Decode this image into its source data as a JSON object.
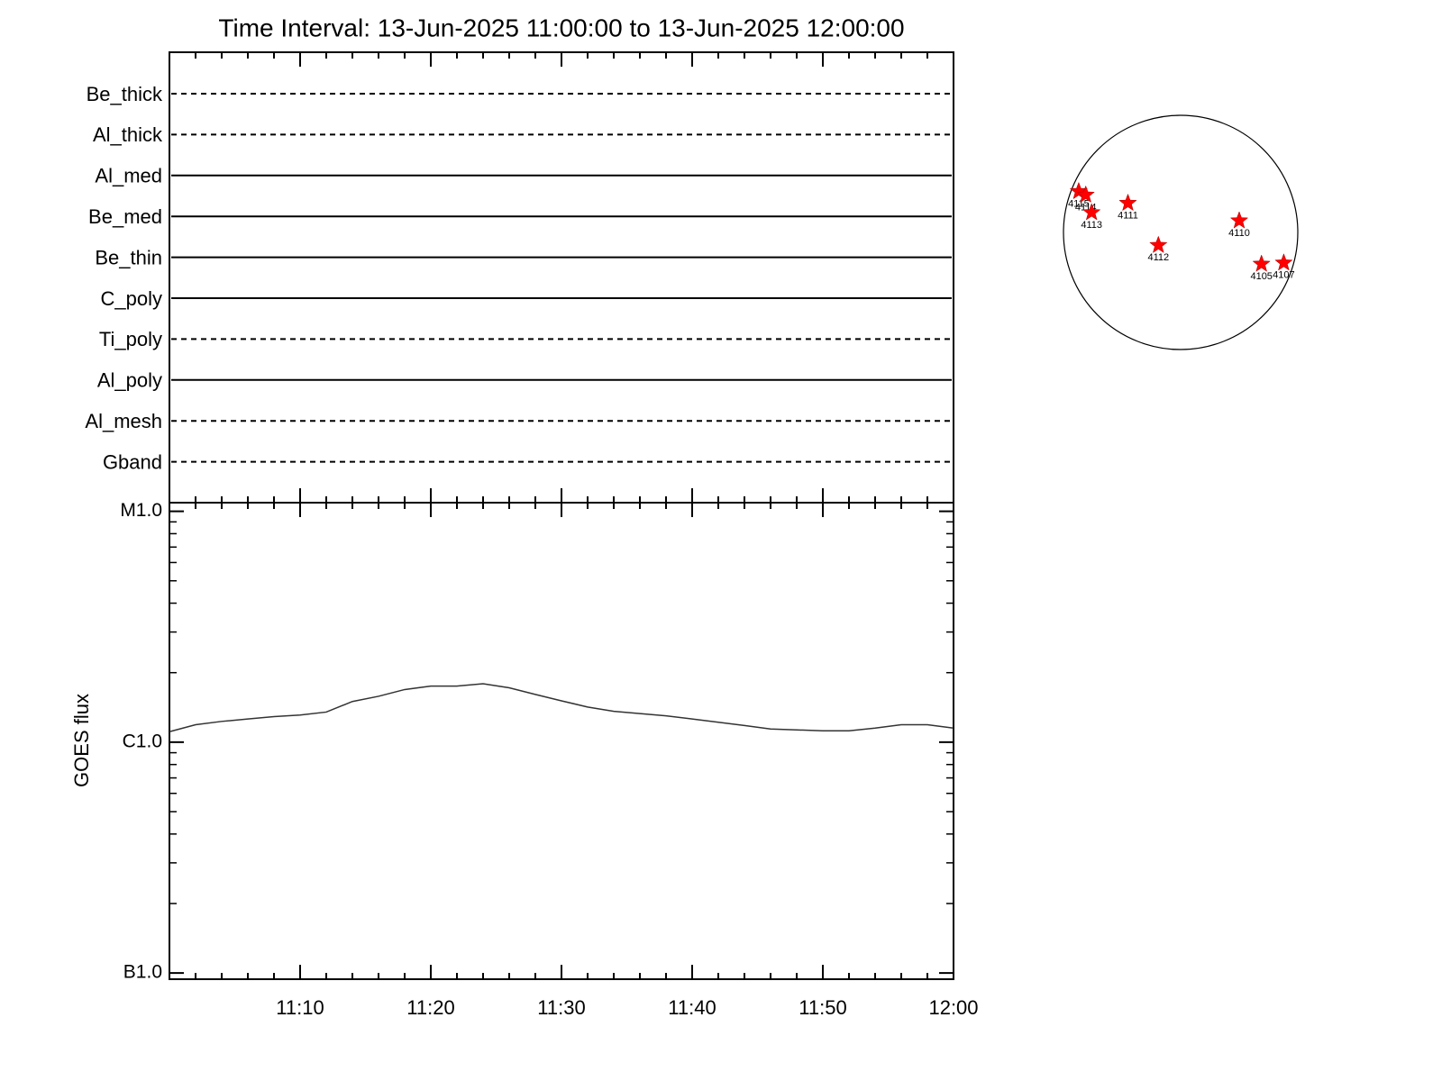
{
  "chart_data": [
    {
      "type": "timeline",
      "title": "Time Interval: 13-Jun-2025 11:00:00 to 13-Jun-2025 12:00:00",
      "categories": [
        "Be_thick",
        "Al_thick",
        "Al_med",
        "Be_med",
        "Be_thin",
        "C_poly",
        "Ti_poly",
        "Al_poly",
        "Al_mesh",
        "Gband"
      ],
      "styles": [
        "dashed",
        "dashed",
        "solid",
        "solid",
        "solid",
        "solid",
        "dashed",
        "solid",
        "dashed",
        "dashed"
      ]
    },
    {
      "type": "line",
      "ylabel": "GOES flux",
      "log_scale": true,
      "color": "#333333",
      "x": [
        "11:00",
        "11:02",
        "11:04",
        "11:06",
        "11:08",
        "11:10",
        "11:12",
        "11:14",
        "11:16",
        "11:18",
        "11:20",
        "11:22",
        "11:24",
        "11:26",
        "11:28",
        "11:30",
        "11:32",
        "11:34",
        "11:36",
        "11:38",
        "11:40",
        "11:42",
        "11:44",
        "11:46",
        "11:48",
        "11:50",
        "11:52",
        "11:54",
        "11:56",
        "11:58",
        "12:00"
      ],
      "values": [
        1.11e-06,
        1.19e-06,
        1.23e-06,
        1.26e-06,
        1.29e-06,
        1.31e-06,
        1.35e-06,
        1.5e-06,
        1.58e-06,
        1.69e-06,
        1.75e-06,
        1.75e-06,
        1.79e-06,
        1.72e-06,
        1.61e-06,
        1.51e-06,
        1.42e-06,
        1.36e-06,
        1.33e-06,
        1.3e-06,
        1.26e-06,
        1.22e-06,
        1.18e-06,
        1.14e-06,
        1.13e-06,
        1.12e-06,
        1.12e-06,
        1.15e-06,
        1.19e-06,
        1.19e-06,
        1.15e-06
      ],
      "xlim": [
        "11:00",
        "12:00"
      ],
      "xticks": [
        "11:10",
        "11:20",
        "11:30",
        "11:40",
        "11:50",
        "12:00"
      ],
      "xminorticks": [
        "11:02",
        "11:04",
        "11:06",
        "11:08",
        "11:12",
        "11:14",
        "11:16",
        "11:18",
        "11:22",
        "11:24",
        "11:26",
        "11:28",
        "11:32",
        "11:34",
        "11:36",
        "11:38",
        "11:42",
        "11:44",
        "11:46",
        "11:48",
        "11:52",
        "11:54",
        "11:56",
        "11:58"
      ],
      "ylim": [
        9.4e-08,
        1.09e-05
      ],
      "yticks": [
        {
          "value": 1e-05,
          "label": "M1.0"
        },
        {
          "value": 1e-06,
          "label": "C1.0"
        },
        {
          "value": 1e-07,
          "label": "B1.0"
        }
      ],
      "yminorticks": [
        2e-07,
        3e-07,
        4e-07,
        5e-07,
        6e-07,
        7e-07,
        8e-07,
        9e-07,
        2e-06,
        3e-06,
        4e-06,
        5e-06,
        6e-06,
        7e-06,
        8e-06,
        9e-06
      ]
    },
    {
      "type": "scatter",
      "color": "#ff0000",
      "labels": [
        "4115",
        "4114",
        "4113",
        "4111",
        "4112",
        "4110",
        "4105",
        "4107"
      ],
      "x": [
        -0.87,
        -0.81,
        -0.76,
        -0.45,
        -0.19,
        0.5,
        0.69,
        0.88
      ],
      "y": [
        0.35,
        0.32,
        0.17,
        0.25,
        -0.11,
        0.1,
        -0.27,
        -0.26
      ],
      "xlim": [
        -1,
        1
      ],
      "ylim": [
        -1,
        1
      ]
    }
  ]
}
